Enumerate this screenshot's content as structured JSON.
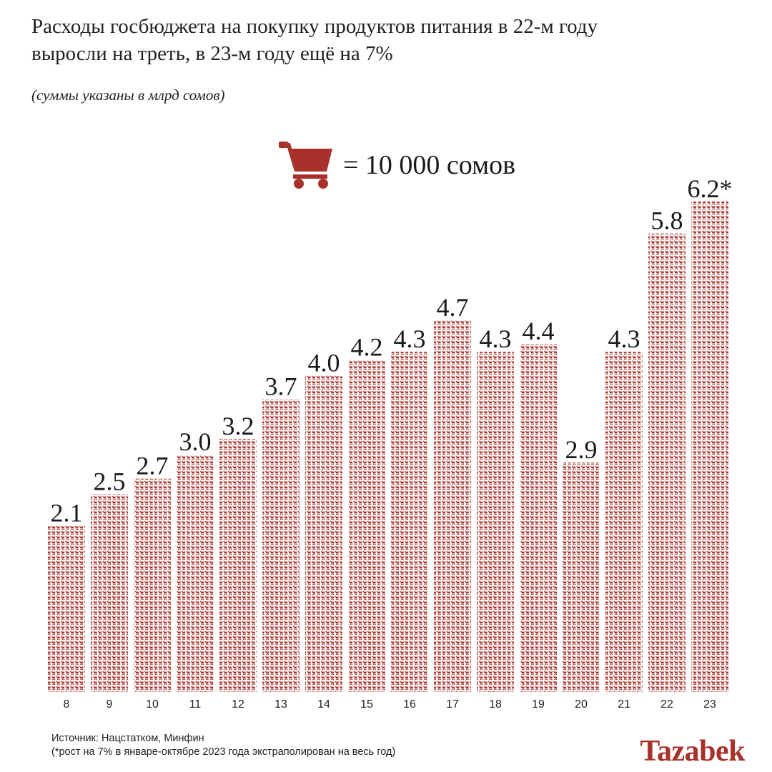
{
  "title_lines": [
    "Расходы госбюджета на покупку продуктов питания в 22-м году",
    "выросли на треть, в 23-м году ещё на 7%"
  ],
  "subtitle": "(суммы указаны в млрд сомов)",
  "legend": {
    "icon": "shopping-cart-icon",
    "text": "= 10 000 сомов"
  },
  "colors": {
    "bar": "#a8322b",
    "accent": "#a8322b",
    "text": "#1a1a1a"
  },
  "footer": {
    "source": "Источник: Нацстатком, Минфин",
    "note": "(*рост на 7% в январе-октябре 2023 года экстраполирован на весь год)"
  },
  "logo": "Tazabek",
  "chart_data": {
    "type": "bar",
    "style": "pictograph",
    "unit": "млрд сомов",
    "categories": [
      "8",
      "9",
      "10",
      "11",
      "12",
      "13",
      "14",
      "15",
      "16",
      "17",
      "18",
      "19",
      "20",
      "21",
      "22",
      "23"
    ],
    "values": [
      2.1,
      2.5,
      2.7,
      3.0,
      3.2,
      3.7,
      4.0,
      4.2,
      4.3,
      4.7,
      4.3,
      4.4,
      2.9,
      4.3,
      5.8,
      6.2
    ],
    "data_labels": [
      "2.1",
      "2.5",
      "2.7",
      "3.0",
      "3.2",
      "3.7",
      "4.0",
      "4.2",
      "4.3",
      "4.7",
      "4.3",
      "4.4",
      "2.9",
      "4.3",
      "5.8",
      "6.2*"
    ],
    "ylim": [
      0,
      6.2
    ],
    "grid": false,
    "legend_position": "top-center"
  }
}
